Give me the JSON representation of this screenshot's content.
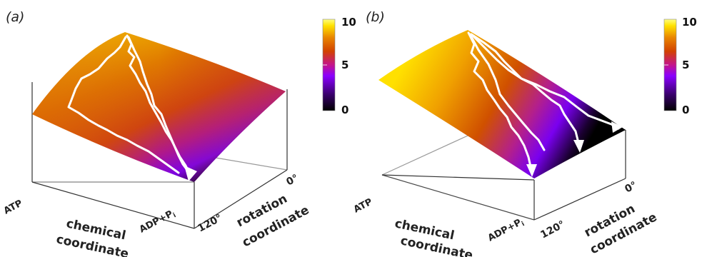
{
  "panels": [
    {
      "label": "(a)",
      "axis_labels": {
        "chemical_line1": "chemical",
        "chemical_line2": "coordinate",
        "rotation_line1": "rotation",
        "rotation_line2": "coordinate"
      },
      "tick_labels": {
        "atp": "ATP",
        "adp": "ADP+P",
        "adp_sub": "i",
        "deg0": "0°",
        "deg120": "120°"
      },
      "colorbar": {
        "min": "0",
        "mid": "5",
        "max": "10"
      }
    },
    {
      "label": "(b)",
      "axis_labels": {
        "chemical_line1": "chemical",
        "chemical_line2": "coordinate",
        "rotation_line1": "rotation",
        "rotation_line2": "coordinate"
      },
      "tick_labels": {
        "atp": "ATP",
        "adp": "ADP+P",
        "adp_sub": "i",
        "deg0": "0°",
        "deg120": "120°"
      },
      "colorbar": {
        "min": "0",
        "mid": "5",
        "max": "10"
      }
    }
  ],
  "colors": {
    "colormap": [
      "#000000",
      "#3a006e",
      "#8a00ff",
      "#c4148c",
      "#d24200",
      "#e98500",
      "#ffe200",
      "#ffff80"
    ],
    "path": "#ffffff",
    "frame": "#333333"
  }
}
